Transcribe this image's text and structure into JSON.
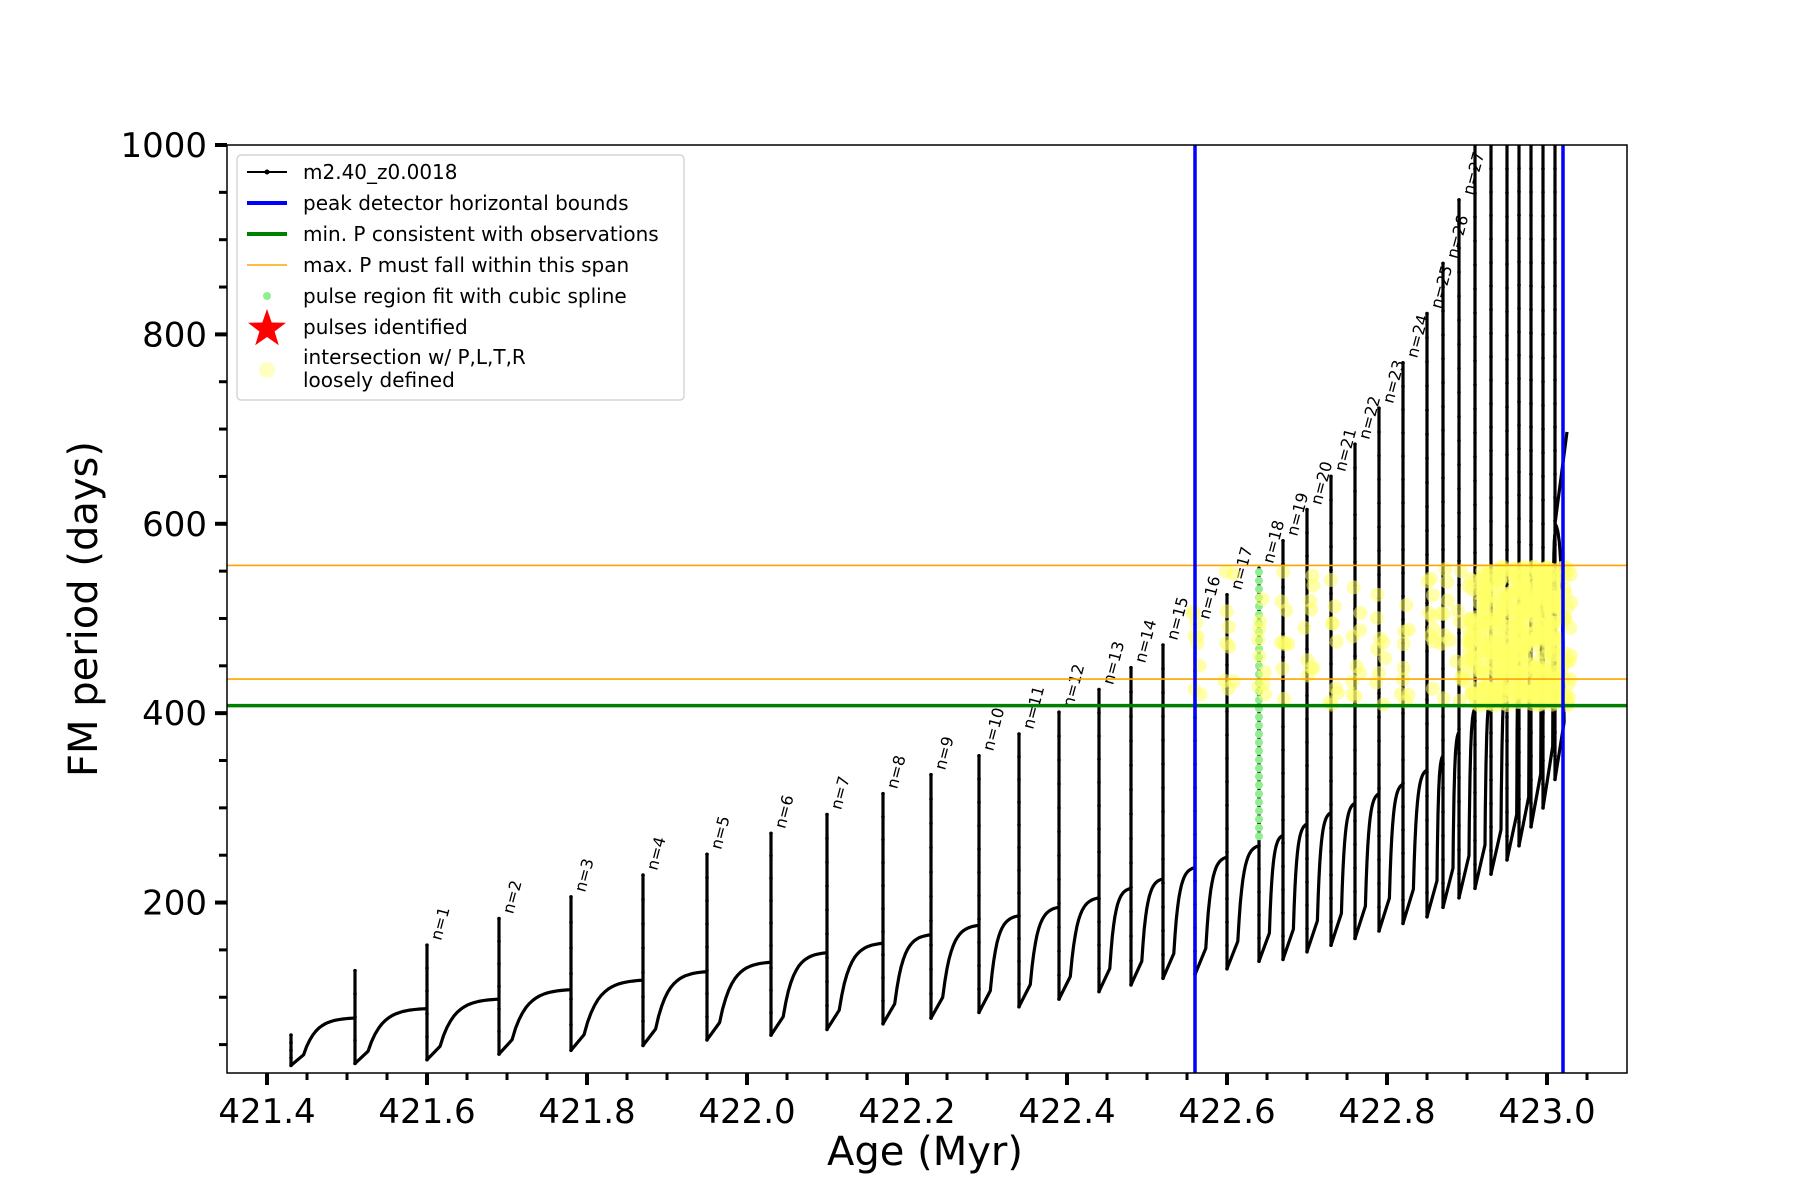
{
  "chart_data": {
    "type": "line",
    "xlabel": "Age (Myr)",
    "ylabel": "FM period (days)",
    "xlim": [
      421.35,
      423.1
    ],
    "ylim": [
      20,
      1000
    ],
    "x_ticks": [
      421.4,
      421.6,
      421.8,
      422.0,
      422.2,
      422.4,
      422.6,
      422.8,
      423.0
    ],
    "x_tick_labels": [
      "421.4",
      "421.6",
      "421.8",
      "422.0",
      "422.2",
      "422.4",
      "422.6",
      "422.8",
      "423.0"
    ],
    "y_ticks": [
      200,
      400,
      600,
      800,
      1000
    ],
    "y_tick_labels": [
      "200",
      "400",
      "600",
      "800",
      "1000"
    ],
    "legend_placement": "upper-left",
    "legend": [
      {
        "label": "m2.40_z0.0018",
        "kind": "line-marker",
        "color": "#000000"
      },
      {
        "label": "peak detector horizontal bounds",
        "kind": "line",
        "color": "#0000ff"
      },
      {
        "label": "min. P consistent with observations",
        "kind": "line",
        "color": "#008000"
      },
      {
        "label": "max. P must fall within this span",
        "kind": "thin-line",
        "color": "#ffa500"
      },
      {
        "label": "pulse region fit with cubic spline",
        "kind": "dot",
        "color": "#90ee90"
      },
      {
        "label": "pulses identified",
        "kind": "star",
        "color": "#ff0000"
      },
      {
        "label": "intersection w/ P,L,T,R",
        "label2": "loosely defined",
        "kind": "circle",
        "color": "#ffff99"
      }
    ],
    "vertical_lines": [
      {
        "name": "peak detector horizontal bounds",
        "x": 422.56,
        "color": "#0000ff"
      },
      {
        "name": "peak detector horizontal bounds",
        "x": 423.02,
        "color": "#0000ff"
      }
    ],
    "horizontal_lines": [
      {
        "name": "min. P consistent with observations",
        "y": 408,
        "color": "#008000"
      },
      {
        "name": "max. P must fall within this span",
        "y": 436,
        "color": "#ffa500"
      },
      {
        "name": "max. P must fall within this span",
        "y": 556,
        "color": "#ffa500"
      }
    ],
    "series": [
      {
        "name": "m2.40_z0.0018",
        "color": "#000000",
        "pulses": [
          {
            "label": "",
            "x": 421.43,
            "peak": 60,
            "min": 28,
            "pre": 28
          },
          {
            "label": "",
            "x": 421.51,
            "peak": 128,
            "min": 30,
            "pre": 78
          },
          {
            "label": "n=1",
            "x": 421.6,
            "peak": 155,
            "min": 34,
            "pre": 88
          },
          {
            "label": "n=2",
            "x": 421.69,
            "peak": 183,
            "min": 40,
            "pre": 98
          },
          {
            "label": "n=3",
            "x": 421.78,
            "peak": 206,
            "min": 44,
            "pre": 108
          },
          {
            "label": "n=4",
            "x": 421.87,
            "peak": 229,
            "min": 49,
            "pre": 118
          },
          {
            "label": "n=5",
            "x": 421.95,
            "peak": 251,
            "min": 55,
            "pre": 127
          },
          {
            "label": "n=6",
            "x": 422.03,
            "peak": 273,
            "min": 60,
            "pre": 137
          },
          {
            "label": "n=7",
            "x": 422.1,
            "peak": 293,
            "min": 66,
            "pre": 147
          },
          {
            "label": "n=8",
            "x": 422.17,
            "peak": 315,
            "min": 72,
            "pre": 157
          },
          {
            "label": "n=9",
            "x": 422.23,
            "peak": 335,
            "min": 78,
            "pre": 166
          },
          {
            "label": "n=10",
            "x": 422.29,
            "peak": 355,
            "min": 84,
            "pre": 176
          },
          {
            "label": "n=11",
            "x": 422.34,
            "peak": 378,
            "min": 90,
            "pre": 186
          },
          {
            "label": "n=12",
            "x": 422.39,
            "peak": 401,
            "min": 98,
            "pre": 195
          },
          {
            "label": "n=13",
            "x": 422.44,
            "peak": 425,
            "min": 106,
            "pre": 205
          },
          {
            "label": "n=14",
            "x": 422.48,
            "peak": 448,
            "min": 113,
            "pre": 215
          },
          {
            "label": "n=15",
            "x": 422.52,
            "peak": 472,
            "min": 120,
            "pre": 225
          },
          {
            "label": "n=16",
            "x": 422.56,
            "peak": 494,
            "min": 124,
            "pre": 237
          },
          {
            "label": "n=17",
            "x": 422.6,
            "peak": 525,
            "min": 130,
            "pre": 248
          },
          {
            "label": "n=18",
            "x": 422.64,
            "peak": 553,
            "min": 138,
            "pre": 260
          },
          {
            "label": "n=19",
            "x": 422.67,
            "peak": 582,
            "min": 140,
            "pre": 271
          },
          {
            "label": "n=20",
            "x": 422.7,
            "peak": 615,
            "min": 148,
            "pre": 283
          },
          {
            "label": "n=21",
            "x": 422.73,
            "peak": 650,
            "min": 155,
            "pre": 295
          },
          {
            "label": "n=22",
            "x": 422.76,
            "peak": 684,
            "min": 162,
            "pre": 305
          },
          {
            "label": "n=23",
            "x": 422.79,
            "peak": 722,
            "min": 170,
            "pre": 315
          },
          {
            "label": "n=24",
            "x": 422.82,
            "peak": 770,
            "min": 178,
            "pre": 325
          },
          {
            "label": "n=25",
            "x": 422.85,
            "peak": 822,
            "min": 185,
            "pre": 340
          },
          {
            "label": "n=26",
            "x": 422.87,
            "peak": 875,
            "min": 195,
            "pre": 355
          },
          {
            "label": "n=27",
            "x": 422.89,
            "peak": 942,
            "min": 205,
            "pre": 380
          },
          {
            "label": "",
            "x": 422.91,
            "peak": 1000,
            "min": 215,
            "pre": 405
          },
          {
            "label": "",
            "x": 422.93,
            "peak": 1000,
            "min": 230,
            "pre": 420
          },
          {
            "label": "",
            "x": 422.95,
            "peak": 1000,
            "min": 245,
            "pre": 440
          },
          {
            "label": "",
            "x": 422.965,
            "peak": 1000,
            "min": 260,
            "pre": 460
          },
          {
            "label": "",
            "x": 422.98,
            "peak": 1000,
            "min": 280,
            "pre": 490
          },
          {
            "label": "",
            "x": 422.995,
            "peak": 1000,
            "min": 300,
            "pre": 530
          },
          {
            "label": "",
            "x": 423.01,
            "peak": 1000,
            "min": 330,
            "pre": 590
          }
        ],
        "tail": {
          "x": [
            423.01,
            423.025
          ],
          "y": [
            600,
            697
          ]
        }
      },
      {
        "name": "pulse region fit with cubic spline",
        "color": "#90ee90",
        "x": 422.64,
        "y_range": [
          270,
          553
        ]
      },
      {
        "name": "intersection w/ P,L,T,R loosely defined",
        "color": "#ffff66",
        "x_range": [
          422.56,
          423.025
        ],
        "y_range": [
          408,
          556
        ],
        "dense_x_range": [
          422.91,
          423.025
        ]
      }
    ]
  }
}
